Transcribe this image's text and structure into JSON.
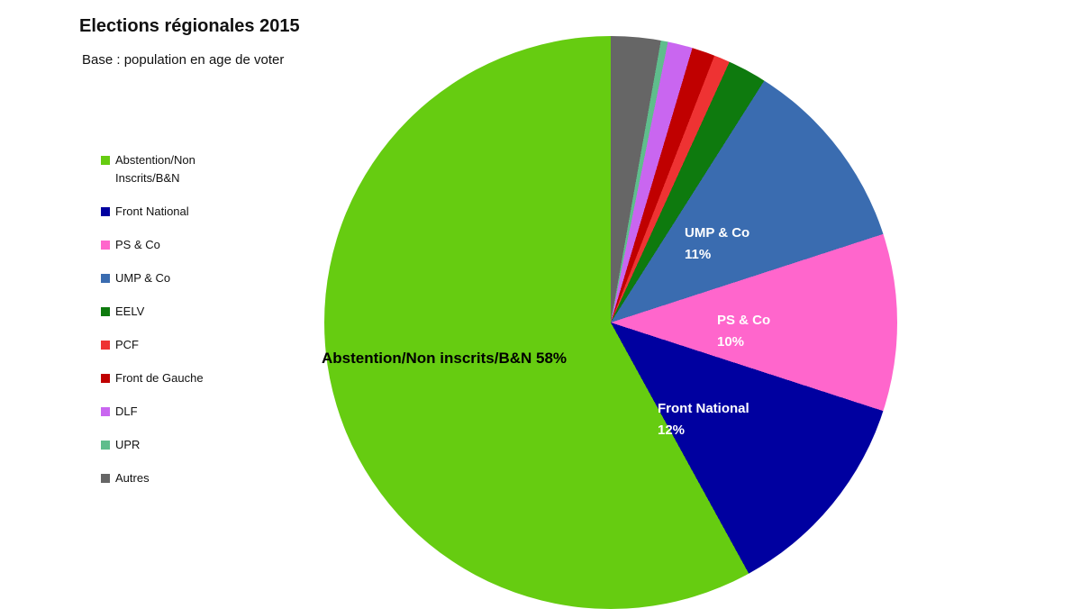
{
  "chart_data": {
    "type": "pie",
    "title": "Elections régionales 2015",
    "subtitle": "Base : population en age de voter",
    "legend_position": "left",
    "start_angle": "12 o'clock",
    "direction": "counterclockwise in legend order",
    "series": [
      {
        "name": "Abstention/Non Inscrits/B&N",
        "value": 58,
        "color": "#66CC11"
      },
      {
        "name": "Front National",
        "value": 12,
        "color": "#0000A0"
      },
      {
        "name": "PS & Co",
        "value": 10,
        "color": "#FF66CC"
      },
      {
        "name": "UMP & Co",
        "value": 11,
        "color": "#3A6CB0"
      },
      {
        "name": "EELV",
        "value": 2.2,
        "color": "#0E7A0E"
      },
      {
        "name": "PCF",
        "value": 0.9,
        "color": "#EE3333"
      },
      {
        "name": "Front de Gauche",
        "value": 1.3,
        "color": "#C00000"
      },
      {
        "name": "DLF",
        "value": 1.4,
        "color": "#C966F0"
      },
      {
        "name": "UPR",
        "value": 0.4,
        "color": "#5FBD8C"
      },
      {
        "name": "Autres",
        "value": 2.8,
        "color": "#666666"
      }
    ],
    "slice_labels": {
      "abstention": {
        "text": "Abstention/Non inscrits/B&N 58%"
      },
      "front_national": {
        "line1": "Front National",
        "line2": "12%"
      },
      "ps_co": {
        "line1": "PS & Co",
        "line2": "10%"
      },
      "ump_co": {
        "line1": "UMP & Co",
        "line2": "11%"
      }
    }
  }
}
